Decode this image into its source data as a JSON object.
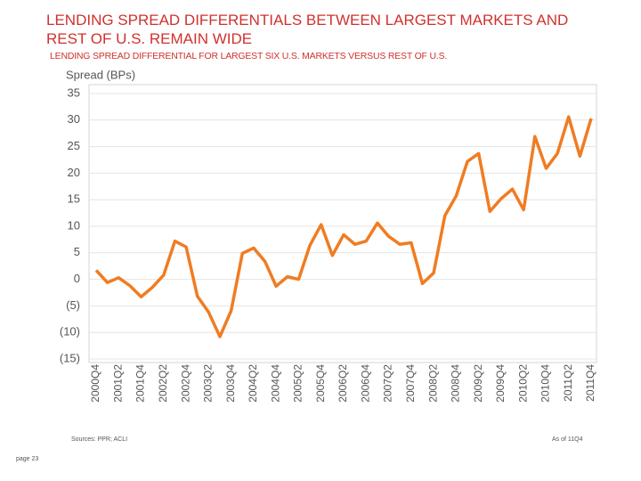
{
  "chart_data": {
    "type": "line",
    "title": "LENDING SPREAD DIFFERENTIALS BETWEEN LARGEST MARKETS AND REST OF U.S. REMAIN WIDE",
    "subtitle": "LENDING SPREAD DIFFERENTIAL FOR LARGEST SIX U.S. MARKETS VERSUS REST OF U.S.",
    "y_label": "Spread (BPs)",
    "categories": [
      "2000Q4",
      null,
      "2001Q2",
      null,
      "2001Q4",
      null,
      "2002Q2",
      null,
      "2002Q4",
      null,
      "2003Q2",
      null,
      "2003Q4",
      null,
      "2004Q2",
      null,
      "2004Q4",
      null,
      "2005Q2",
      null,
      "2005Q4",
      null,
      "2006Q2",
      null,
      "2006Q4",
      null,
      "2007Q2",
      null,
      "2007Q4",
      null,
      "2008Q2",
      null,
      "2008Q4",
      null,
      "2009Q2",
      null,
      "2009Q4",
      null,
      "2010Q2",
      null,
      "2010Q4",
      null,
      "2011Q2",
      null,
      "2011Q4"
    ],
    "series": [
      {
        "color": "#f07c22",
        "values": [
          1.7,
          -0.6,
          0.3,
          -1.2,
          -3.3,
          -1.5,
          0.8,
          7.2,
          6.1,
          -3.2,
          -6.2,
          -10.8,
          -5.9,
          4.9,
          5.9,
          3.4,
          -1.3,
          0.5,
          0.0,
          6.4,
          10.3,
          4.5,
          8.4,
          6.6,
          7.2,
          10.6,
          8.1,
          6.6,
          6.9,
          -0.8,
          1.2,
          12.0,
          15.7,
          22.2,
          23.7,
          12.8,
          15.2,
          17.0,
          13.1,
          26.9,
          20.9,
          23.7,
          30.6,
          23.2,
          30.3
        ]
      }
    ],
    "ylim": [
      -15,
      35
    ],
    "yticks": [
      35,
      30,
      25,
      20,
      15,
      10,
      5,
      0,
      {
        "value": -5,
        "label": "(5)"
      },
      {
        "value": -10,
        "label": "(10)"
      },
      {
        "value": -15,
        "label": "(15)"
      }
    ],
    "grid": true,
    "source": "Sources: PPR; ACLI",
    "note": "As of 11Q4"
  },
  "page": "page 23"
}
